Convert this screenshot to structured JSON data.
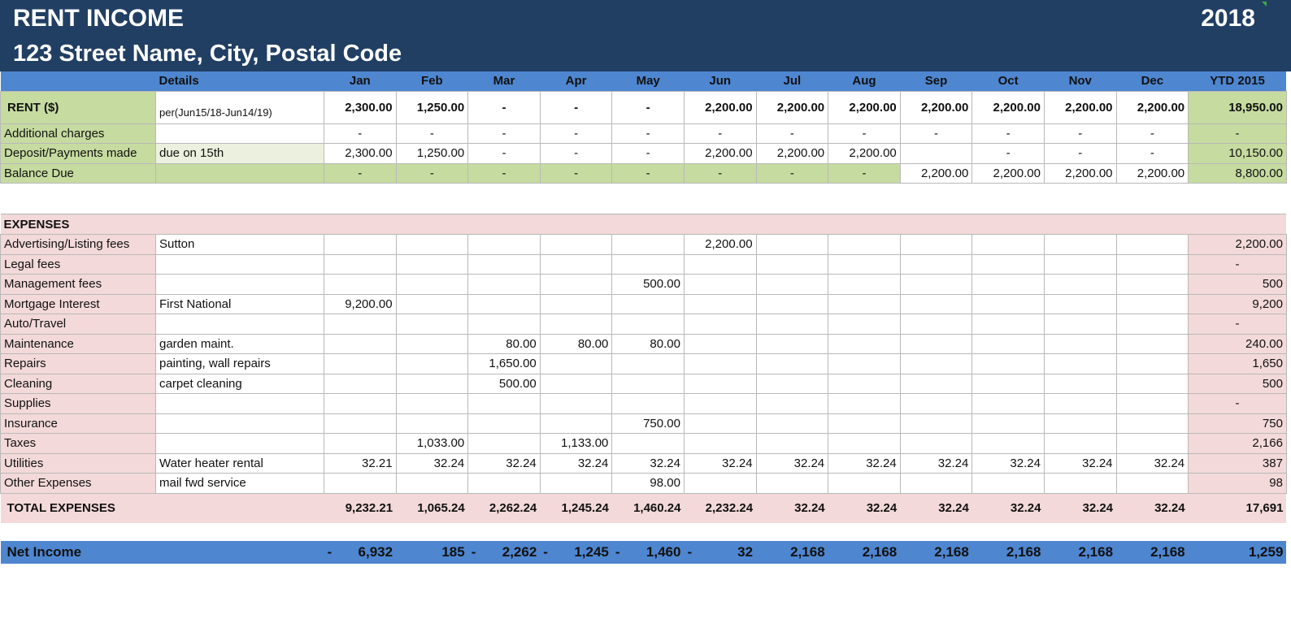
{
  "banner": {
    "title": "RENT INCOME",
    "address": "123 Street Name, City, Postal Code",
    "year": "2018"
  },
  "columns": {
    "details": "Details",
    "months": [
      "Jan",
      "Feb",
      "Mar",
      "Apr",
      "May",
      "Jun",
      "Jul",
      "Aug",
      "Sep",
      "Oct",
      "Nov",
      "Dec"
    ],
    "ytd": "YTD 2015"
  },
  "income_rows": [
    {
      "label": "RENT ($)",
      "detail": "per(Jun15/18-Jun14/19)",
      "values": [
        "2,300.00",
        "1,250.00",
        "-",
        "-",
        "-",
        "2,200.00",
        "2,200.00",
        "2,200.00",
        "2,200.00",
        "2,200.00",
        "2,200.00",
        "2,200.00"
      ],
      "ytd": "18,950.00"
    },
    {
      "label": "Additional charges",
      "detail": "",
      "values": [
        "-",
        "-",
        "-",
        "-",
        "-",
        "-",
        "-",
        "-",
        "-",
        "-",
        "-",
        "-"
      ],
      "ytd": "-"
    },
    {
      "label": "Deposit/Payments made",
      "detail": "due on 15th",
      "values": [
        "2,300.00",
        "1,250.00",
        "-",
        "-",
        "-",
        "2,200.00",
        "2,200.00",
        "2,200.00",
        "",
        "-",
        "-",
        "-"
      ],
      "ytd": "10,150.00"
    },
    {
      "label": "Balance Due",
      "detail": "",
      "values": [
        "-",
        "-",
        "-",
        "-",
        "-",
        "-",
        "-",
        "-",
        "2,200.00",
        "2,200.00",
        "2,200.00",
        "2,200.00"
      ],
      "ytd": "8,800.00"
    }
  ],
  "expenses": {
    "section_label": "EXPENSES",
    "rows": [
      {
        "label": "Advertising/Listing fees",
        "detail": "Sutton",
        "values": [
          "",
          "",
          "",
          "",
          "",
          "2,200.00",
          "",
          "",
          "",
          "",
          "",
          ""
        ],
        "ytd": "2,200.00"
      },
      {
        "label": "Legal fees",
        "detail": "",
        "values": [
          "",
          "",
          "",
          "",
          "",
          "",
          "",
          "",
          "",
          "",
          "",
          ""
        ],
        "ytd": "-"
      },
      {
        "label": "Management fees",
        "detail": "",
        "values": [
          "",
          "",
          "",
          "",
          "500.00",
          "",
          "",
          "",
          "",
          "",
          "",
          ""
        ],
        "ytd": "500"
      },
      {
        "label": "Mortgage Interest",
        "detail": "First National",
        "values": [
          "9,200.00",
          "",
          "",
          "",
          "",
          "",
          "",
          "",
          "",
          "",
          "",
          ""
        ],
        "ytd": "9,200"
      },
      {
        "label": "Auto/Travel",
        "detail": "",
        "values": [
          "",
          "",
          "",
          "",
          "",
          "",
          "",
          "",
          "",
          "",
          "",
          ""
        ],
        "ytd": "-"
      },
      {
        "label": "Maintenance",
        "detail": "garden maint.",
        "values": [
          "",
          "",
          "80.00",
          "80.00",
          "80.00",
          "",
          "",
          "",
          "",
          "",
          "",
          ""
        ],
        "ytd": "240.00"
      },
      {
        "label": "Repairs",
        "detail": "painting, wall repairs",
        "values": [
          "",
          "",
          "1,650.00",
          "",
          "",
          "",
          "",
          "",
          "",
          "",
          "",
          ""
        ],
        "ytd": "1,650"
      },
      {
        "label": "Cleaning",
        "detail": "carpet cleaning",
        "values": [
          "",
          "",
          "500.00",
          "",
          "",
          "",
          "",
          "",
          "",
          "",
          "",
          ""
        ],
        "ytd": "500"
      },
      {
        "label": "Supplies",
        "detail": "",
        "values": [
          "",
          "",
          "",
          "",
          "",
          "",
          "",
          "",
          "",
          "",
          "",
          ""
        ],
        "ytd": "-"
      },
      {
        "label": "Insurance",
        "detail": "",
        "values": [
          "",
          "",
          "",
          "",
          "750.00",
          "",
          "",
          "",
          "",
          "",
          "",
          ""
        ],
        "ytd": "750"
      },
      {
        "label": "Taxes",
        "detail": "",
        "values": [
          "",
          "1,033.00",
          "",
          "1,133.00",
          "",
          "",
          "",
          "",
          "",
          "",
          "",
          ""
        ],
        "ytd": "2,166"
      },
      {
        "label": "Utilities",
        "detail": "Water heater rental",
        "values": [
          "32.21",
          "32.24",
          "32.24",
          "32.24",
          "32.24",
          "32.24",
          "32.24",
          "32.24",
          "32.24",
          "32.24",
          "32.24",
          "32.24"
        ],
        "ytd": "387"
      },
      {
        "label": "Other Expenses",
        "detail": "mail fwd service",
        "values": [
          "",
          "",
          "",
          "",
          "98.00",
          "",
          "",
          "",
          "",
          "",
          "",
          ""
        ],
        "ytd": "98"
      }
    ]
  },
  "total_expenses": {
    "label": "TOTAL EXPENSES",
    "values": [
      "9,232.21",
      "1,065.24",
      "2,262.24",
      "1,245.24",
      "1,460.24",
      "2,232.24",
      "32.24",
      "32.24",
      "32.24",
      "32.24",
      "32.24",
      "32.24"
    ],
    "ytd": "17,691"
  },
  "net_income": {
    "label": "Net Income",
    "values": [
      {
        "sign": "-",
        "amount": "6,932"
      },
      {
        "sign": "",
        "amount": "185"
      },
      {
        "sign": "-",
        "amount": "2,262"
      },
      {
        "sign": "-",
        "amount": "1,245"
      },
      {
        "sign": "-",
        "amount": "1,460"
      },
      {
        "sign": "-",
        "amount": "32"
      },
      {
        "sign": "",
        "amount": "2,168"
      },
      {
        "sign": "",
        "amount": "2,168"
      },
      {
        "sign": "",
        "amount": "2,168"
      },
      {
        "sign": "",
        "amount": "2,168"
      },
      {
        "sign": "",
        "amount": "2,168"
      },
      {
        "sign": "",
        "amount": "2,168"
      }
    ],
    "ytd": "1,259"
  },
  "colors": {
    "banner": "#213f63",
    "header": "#4e86d0",
    "income_green": "#c6dba0",
    "income_light": "#ebf1de",
    "expense_pink": "#f3d9d9"
  }
}
